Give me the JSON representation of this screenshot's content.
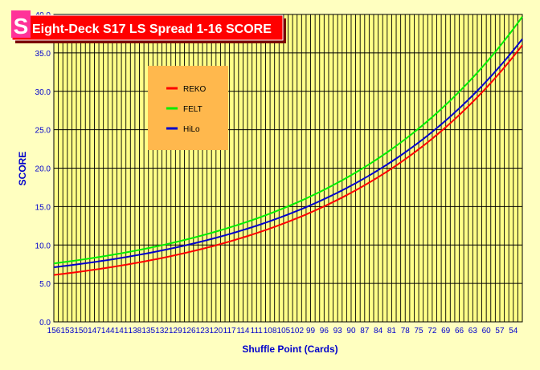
{
  "chart_data": {
    "type": "line",
    "title": "Eight-Deck S17 LS Spread 1-16 SCORE",
    "logo_letter": "S",
    "xlabel": "Shuffle Point (Cards)",
    "ylabel": "SCORE",
    "ylim": [
      0,
      40
    ],
    "y_ticks": [
      "0.0",
      "5.0",
      "10.0",
      "15.0",
      "20.0",
      "25.0",
      "30.0",
      "35.0",
      "40.0"
    ],
    "x_ticks": [
      "156",
      "153",
      "150",
      "147",
      "144",
      "141",
      "138",
      "135",
      "132",
      "129",
      "126",
      "123",
      "120",
      "117",
      "114",
      "111",
      "108",
      "105",
      "102",
      "99",
      "96",
      "93",
      "90",
      "87",
      "84",
      "81",
      "78",
      "75",
      "72",
      "69",
      "66",
      "63",
      "60",
      "57",
      "54"
    ],
    "x": [
      156,
      155,
      154,
      153,
      152,
      151,
      150,
      149,
      148,
      147,
      146,
      145,
      144,
      143,
      142,
      141,
      140,
      139,
      138,
      137,
      136,
      135,
      134,
      133,
      132,
      131,
      130,
      129,
      128,
      127,
      126,
      125,
      124,
      123,
      122,
      121,
      120,
      119,
      118,
      117,
      116,
      115,
      114,
      113,
      112,
      111,
      110,
      109,
      108,
      107,
      106,
      105,
      104,
      103,
      102,
      101,
      100,
      99,
      98,
      97,
      96,
      95,
      94,
      93,
      92,
      91,
      90,
      89,
      88,
      87,
      86,
      85,
      84,
      83,
      82,
      81,
      80,
      79,
      78,
      77,
      76,
      75,
      74,
      73,
      72,
      71,
      70,
      69,
      68,
      67,
      66,
      65,
      64,
      63,
      62,
      61,
      60,
      59,
      58,
      57,
      56,
      55,
      54,
      53,
      52
    ],
    "series": [
      {
        "name": "REKO",
        "color": "#ff0000",
        "start": 6.1,
        "end": 36.0
      },
      {
        "name": "FELT",
        "color": "#00ee00",
        "start": 7.6,
        "end": 39.7
      },
      {
        "name": "HiLo",
        "color": "#0000cc",
        "start": 7.1,
        "end": 36.8
      }
    ],
    "grid": true,
    "legend_position": "upper-left"
  }
}
